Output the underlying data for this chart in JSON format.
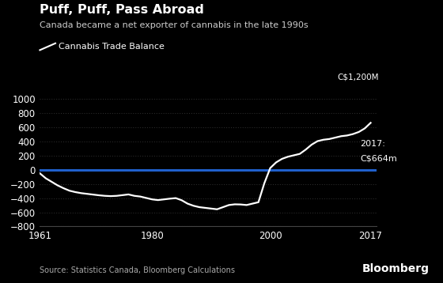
{
  "title": "Puff, Puff, Pass Abroad",
  "subtitle": "Canada became a net exporter of cannabis in the late 1990s",
  "legend_label": "Cannabis Trade Balance",
  "annotation_line1": "2017:",
  "annotation_line2": "C$664m",
  "source": "Source: Statistics Canada, Bloomberg Calculations",
  "bloomberg": "Bloomberg",
  "ylabel": "C$1,200M",
  "background_color": "#000000",
  "line_color": "#ffffff",
  "zero_line_color": "#2060cc",
  "grid_color": "#2a2a2a",
  "text_color": "#ffffff",
  "subtext_color": "#cccccc",
  "source_color": "#aaaaaa",
  "xlim": [
    1961,
    2018
  ],
  "ylim": [
    -800,
    1200
  ],
  "yticks": [
    -800,
    -600,
    -400,
    -200,
    0,
    200,
    400,
    600,
    800,
    1000
  ],
  "xticks": [
    1961,
    1980,
    2000,
    2017
  ],
  "years": [
    1961,
    1962,
    1963,
    1964,
    1965,
    1966,
    1967,
    1968,
    1969,
    1970,
    1971,
    1972,
    1973,
    1974,
    1975,
    1976,
    1977,
    1978,
    1979,
    1980,
    1981,
    1982,
    1983,
    1984,
    1985,
    1986,
    1987,
    1988,
    1989,
    1990,
    1991,
    1992,
    1993,
    1994,
    1995,
    1996,
    1997,
    1998,
    1999,
    2000,
    2001,
    2002,
    2003,
    2004,
    2005,
    2006,
    2007,
    2008,
    2009,
    2010,
    2011,
    2012,
    2013,
    2014,
    2015,
    2016,
    2017
  ],
  "values": [
    -50,
    -120,
    -170,
    -220,
    -260,
    -295,
    -315,
    -330,
    -340,
    -350,
    -360,
    -368,
    -372,
    -368,
    -358,
    -348,
    -368,
    -378,
    -398,
    -418,
    -428,
    -418,
    -408,
    -400,
    -430,
    -478,
    -508,
    -528,
    -538,
    -548,
    -558,
    -528,
    -498,
    -488,
    -490,
    -498,
    -478,
    -458,
    -190,
    25,
    105,
    155,
    185,
    205,
    225,
    285,
    355,
    405,
    425,
    435,
    455,
    475,
    485,
    505,
    535,
    585,
    664
  ]
}
